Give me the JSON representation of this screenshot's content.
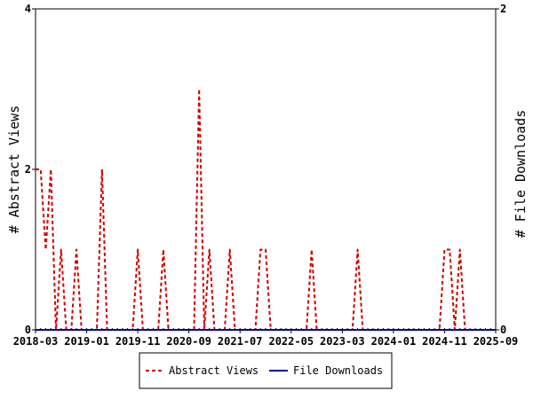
{
  "chart_data": {
    "type": "line",
    "x_unit": "month",
    "x": [
      "2018-03",
      "2018-04",
      "2018-05",
      "2018-06",
      "2018-07",
      "2018-08",
      "2018-09",
      "2018-10",
      "2018-11",
      "2018-12",
      "2019-01",
      "2019-02",
      "2019-03",
      "2019-04",
      "2019-05",
      "2019-06",
      "2019-07",
      "2019-08",
      "2019-09",
      "2019-10",
      "2019-11",
      "2019-12",
      "2020-01",
      "2020-02",
      "2020-03",
      "2020-04",
      "2020-05",
      "2020-06",
      "2020-07",
      "2020-08",
      "2020-09",
      "2020-10",
      "2020-11",
      "2020-12",
      "2021-01",
      "2021-02",
      "2021-03",
      "2021-04",
      "2021-05",
      "2021-06",
      "2021-07",
      "2021-08",
      "2021-09",
      "2021-10",
      "2021-11",
      "2021-12",
      "2022-01",
      "2022-02",
      "2022-03",
      "2022-04",
      "2022-05",
      "2022-06",
      "2022-07",
      "2022-08",
      "2022-09",
      "2022-10",
      "2022-11",
      "2022-12",
      "2023-01",
      "2023-02",
      "2023-03",
      "2023-04",
      "2023-05",
      "2023-06",
      "2023-07",
      "2023-08",
      "2023-09",
      "2023-10",
      "2023-11",
      "2023-12",
      "2024-01",
      "2024-02",
      "2024-03",
      "2024-04",
      "2024-05",
      "2024-06",
      "2024-07",
      "2024-08",
      "2024-09",
      "2024-10",
      "2024-11",
      "2024-12",
      "2025-01",
      "2025-02",
      "2025-03",
      "2025-04",
      "2025-05",
      "2025-06",
      "2025-07",
      "2025-08",
      "2025-09"
    ],
    "series": [
      {
        "name": "Abstract Views",
        "axis": "left",
        "color": "#cc0000",
        "style": "dashed",
        "values": [
          2,
          2,
          1,
          2,
          0,
          1,
          0,
          0,
          1,
          0,
          0,
          0,
          0,
          2,
          0,
          0,
          0,
          0,
          0,
          0,
          1,
          0,
          0,
          0,
          0,
          1,
          0,
          0,
          0,
          0,
          0,
          0,
          3,
          0,
          1,
          0,
          0,
          0,
          1,
          0,
          0,
          0,
          0,
          0,
          1,
          1,
          0,
          0,
          0,
          0,
          0,
          0,
          0,
          0,
          1,
          0,
          0,
          0,
          0,
          0,
          0,
          0,
          0,
          1,
          0,
          0,
          0,
          0,
          0,
          0,
          0,
          0,
          0,
          0,
          0,
          0,
          0,
          0,
          0,
          0,
          1,
          1,
          0,
          1,
          0,
          0,
          0,
          0,
          0,
          0,
          0
        ]
      },
      {
        "name": "File Downloads",
        "axis": "right",
        "color": "#000099",
        "style": "solid",
        "values": [
          0,
          0,
          0,
          0,
          0,
          0,
          0,
          0,
          0,
          0,
          0,
          0,
          0,
          0,
          0,
          0,
          0,
          0,
          0,
          0,
          0,
          0,
          0,
          0,
          0,
          0,
          0,
          0,
          0,
          0,
          0,
          0,
          0,
          0,
          0,
          0,
          0,
          0,
          0,
          0,
          0,
          0,
          0,
          0,
          0,
          0,
          0,
          0,
          0,
          0,
          0,
          0,
          0,
          0,
          0,
          0,
          0,
          0,
          0,
          0,
          0,
          0,
          0,
          0,
          0,
          0,
          0,
          0,
          0,
          0,
          0,
          0,
          0,
          0,
          0,
          0,
          0,
          0,
          0,
          0,
          0,
          0,
          0,
          0,
          0,
          0,
          0,
          0,
          0,
          0,
          0
        ]
      }
    ],
    "x_tick_labels": [
      "2018-03",
      "2019-01",
      "2019-11",
      "2020-09",
      "2021-07",
      "2022-05",
      "2023-03",
      "2024-01",
      "2024-11",
      "2025-09"
    ],
    "x_tick_months": [
      "2018-03",
      "2019-01",
      "2019-11",
      "2020-09",
      "2021-07",
      "2022-05",
      "2023-03",
      "2024-01",
      "2024-11",
      "2025-09"
    ],
    "ylabel_left": "# Abstract Views",
    "ylabel_right": "# File Downloads",
    "ylim_left": [
      0,
      4
    ],
    "ylim_right": [
      0,
      2
    ],
    "y_ticks_left": [
      "0",
      "2",
      "4"
    ],
    "y_ticks_right": [
      "0",
      "2"
    ],
    "grid": false,
    "legend": {
      "placement": "bottom-center",
      "entries": [
        "Abstract Views",
        "File Downloads"
      ]
    }
  }
}
